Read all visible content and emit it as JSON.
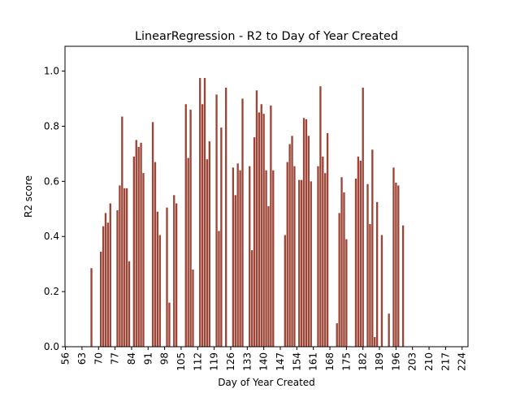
{
  "chart_data": {
    "type": "bar",
    "title": "LinearRegression - R2 to Day of Year Created",
    "x_label": "Day of Year Created",
    "y_label": "R2 score",
    "color": "#9c4536",
    "x": [
      67,
      71,
      72,
      73,
      74,
      75,
      78,
      79,
      80,
      81,
      82,
      83,
      85,
      86,
      87,
      88,
      89,
      93,
      94,
      95,
      96,
      99,
      100,
      102,
      103,
      107,
      108,
      109,
      110,
      113,
      114,
      115,
      116,
      117,
      120,
      121,
      122,
      124,
      127,
      128,
      129,
      130,
      131,
      134,
      135,
      136,
      137,
      138,
      139,
      140,
      141,
      142,
      143,
      144,
      149,
      150,
      151,
      152,
      153,
      155,
      156,
      157,
      158,
      159,
      160,
      163,
      164,
      165,
      166,
      167,
      171,
      172,
      173,
      174,
      175,
      179,
      180,
      181,
      182,
      184,
      185,
      186,
      187,
      188,
      190,
      193,
      195,
      196,
      197,
      199
    ],
    "values": [
      0.285,
      0.345,
      0.437,
      0.485,
      0.45,
      0.52,
      0.495,
      0.585,
      0.835,
      0.575,
      0.575,
      0.31,
      0.69,
      0.75,
      0.725,
      0.74,
      0.63,
      0.815,
      0.67,
      0.49,
      0.405,
      0.505,
      0.16,
      0.55,
      0.52,
      0.88,
      0.685,
      0.86,
      0.28,
      0.975,
      0.88,
      0.975,
      0.68,
      0.745,
      0.915,
      0.42,
      0.795,
      0.94,
      0.65,
      0.55,
      0.665,
      0.64,
      0.9,
      0.655,
      0.35,
      0.76,
      0.93,
      0.85,
      0.88,
      0.845,
      0.64,
      0.51,
      0.875,
      0.64,
      0.405,
      0.67,
      0.735,
      0.765,
      0.655,
      0.605,
      0.605,
      0.83,
      0.825,
      0.765,
      0.6,
      0.655,
      0.945,
      0.69,
      0.63,
      0.775,
      0.085,
      0.485,
      0.615,
      0.56,
      0.39,
      0.61,
      0.69,
      0.675,
      0.94,
      0.59,
      0.445,
      0.715,
      0.035,
      0.525,
      0.405,
      0.12,
      0.65,
      0.595,
      0.585,
      0.44
    ],
    "xlim": [
      55.8,
      226.5
    ],
    "xticks": [
      56,
      63,
      70,
      77,
      84,
      91,
      98,
      105,
      112,
      119,
      126,
      133,
      140,
      147,
      154,
      161,
      168,
      175,
      182,
      189,
      196,
      203,
      210,
      217,
      224
    ],
    "ylim": [
      0,
      1.09
    ],
    "yticks": [
      {
        "value": 0,
        "label": "0.0"
      },
      0.2,
      0.4,
      0.6,
      0.8,
      {
        "value": 1,
        "label": "1.0"
      }
    ]
  }
}
